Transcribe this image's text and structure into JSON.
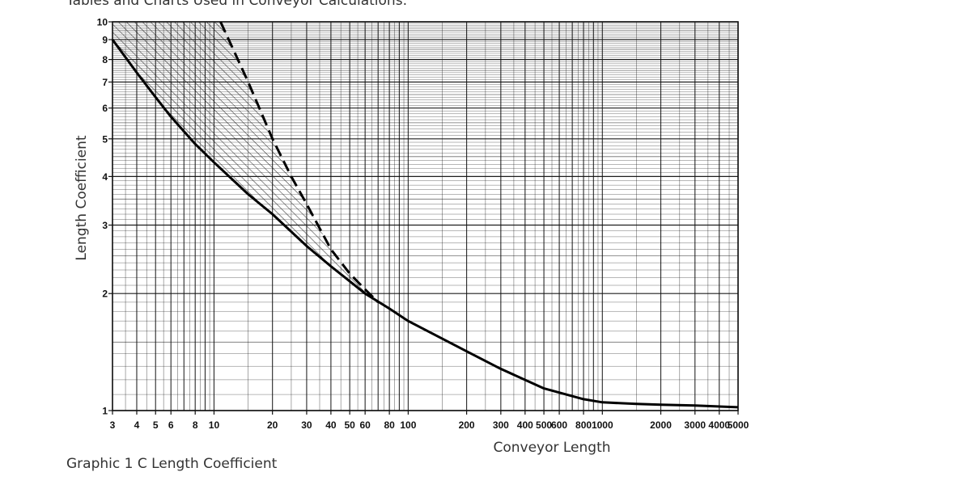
{
  "page": {
    "header_text": "Tables and Charts Used in Conveyor Calculations:",
    "caption": "Graphic 1 C Length Coefficient"
  },
  "chart_data": {
    "type": "line",
    "title": "",
    "xlabel": "Conveyor Length",
    "ylabel": "Length Coefficient",
    "x_scale": "log",
    "y_scale": "log",
    "xlim": [
      3,
      5000
    ],
    "ylim": [
      1,
      10
    ],
    "grid": true,
    "x_tick_labels": [
      "3",
      "4",
      "5",
      "6",
      "8",
      "10",
      "20",
      "30",
      "40",
      "50",
      "60",
      "80",
      "100",
      "200",
      "300",
      "400",
      "500",
      "600",
      "800",
      "1000",
      "2000",
      "3000",
      "4000",
      "5000"
    ],
    "y_tick_labels": [
      "1",
      "2",
      "3",
      "4",
      "5",
      "6",
      "7",
      "8",
      "9",
      "10"
    ],
    "series": [
      {
        "style": "solid",
        "x": [
          3,
          4,
          5,
          6,
          8,
          10,
          15,
          20,
          30,
          40,
          50,
          60,
          80,
          100,
          200,
          300,
          500,
          800,
          1000,
          1500,
          2000,
          3000,
          5000
        ],
        "y": [
          9.0,
          7.4,
          6.4,
          5.7,
          4.85,
          4.35,
          3.6,
          3.2,
          2.65,
          2.35,
          2.15,
          2.0,
          1.83,
          1.7,
          1.42,
          1.28,
          1.14,
          1.07,
          1.05,
          1.04,
          1.035,
          1.03,
          1.02
        ]
      },
      {
        "style": "dashed",
        "x": [
          10.8,
          15,
          20,
          25,
          30,
          40,
          50,
          60,
          70
        ],
        "y": [
          10,
          7.0,
          5.0,
          4.0,
          3.4,
          2.6,
          2.25,
          2.05,
          1.9
        ]
      }
    ],
    "hatched_region": "between dashed and solid curves"
  }
}
